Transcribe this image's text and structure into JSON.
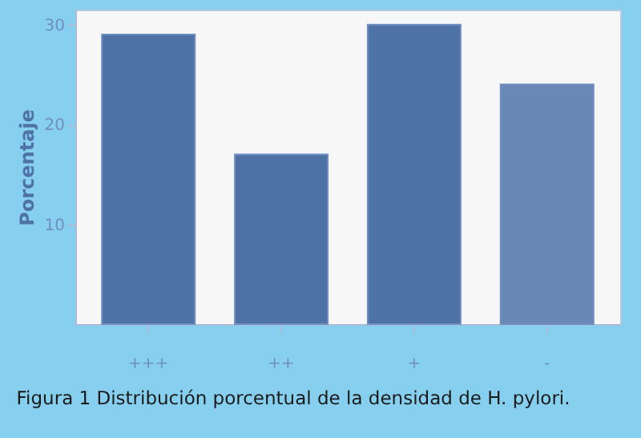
{
  "chart_data": {
    "type": "bar",
    "ylabel": "Porcentaje",
    "annotations": [
      "Figura 1 Distribución porcentual de la densidad de H. pylori."
    ],
    "categories": [
      "+++",
      "++",
      "+",
      "-"
    ],
    "values": [
      29,
      17,
      30,
      24
    ],
    "colors": [
      "#4f72a6",
      "#4f72a6",
      "#4f72a6",
      "#6a88b6"
    ],
    "ylim": [
      0,
      31.5
    ],
    "yticks": [
      10,
      20,
      30
    ],
    "grid": false
  }
}
